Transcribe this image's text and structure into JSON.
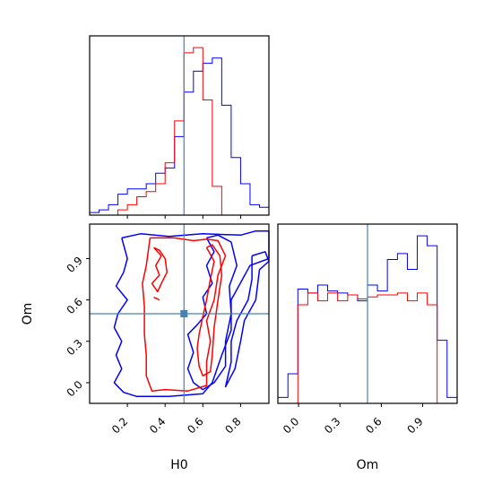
{
  "chart_data": {
    "type": "corner",
    "parameters": [
      "H0",
      "Om"
    ],
    "truth": {
      "H0": 0.5,
      "Om": 0.5
    },
    "colors": {
      "series_a": "#0000ff",
      "series_b": "#ff0000",
      "truth": "#4682b4",
      "frame": "#000000"
    },
    "panels": {
      "H0_marginal": {
        "type": "histogram",
        "xlim": [
          0.0,
          0.95
        ],
        "bin_edges": [
          0.0,
          0.05,
          0.1,
          0.15,
          0.2,
          0.25,
          0.3,
          0.35,
          0.4,
          0.45,
          0.5,
          0.55,
          0.6,
          0.65,
          0.7,
          0.75,
          0.8,
          0.85,
          0.9,
          0.95
        ],
        "series": [
          {
            "color": "blue",
            "counts": [
              1,
              2,
              4,
              8,
              10,
              10,
              12,
              16,
              18,
              30,
              47,
              55,
              58,
              60,
              42,
              22,
              12,
              4,
              3
            ]
          },
          {
            "color": "red",
            "counts": [
              0,
              0,
              0,
              2,
              4,
              7,
              9,
              12,
              20,
              36,
              62,
              64,
              44,
              11,
              0,
              0,
              0,
              0,
              0
            ]
          }
        ],
        "truth_line": 0.5
      },
      "Om_marginal": {
        "type": "histogram",
        "xlim": [
          -0.15,
          1.15
        ],
        "xticks": [
          "0.0",
          "0.3",
          "0.6",
          "0.9"
        ],
        "xlabel": "Om",
        "bin_edges": [
          -0.15,
          -0.077,
          -0.005,
          0.067,
          0.139,
          0.211,
          0.283,
          0.356,
          0.428,
          0.5,
          0.572,
          0.644,
          0.717,
          0.789,
          0.861,
          0.933,
          1.005,
          1.077,
          1.15
        ],
        "series": [
          {
            "color": "blue",
            "counts": [
              3,
              15,
              58,
              56,
              60,
              57,
              56,
              55,
              52,
              60,
              57,
              73,
              76,
              68,
              85,
              80,
              32,
              3
            ]
          },
          {
            "color": "red",
            "counts": [
              0,
              0,
              50,
              56,
              52,
              56,
              52,
              55,
              53,
              54,
              55,
              55,
              56,
              52,
              56,
              50,
              0,
              0
            ]
          }
        ],
        "truth_line": 0.5
      },
      "H0_Om_joint": {
        "type": "contour",
        "xlim": [
          0.0,
          0.95
        ],
        "ylim": [
          -0.15,
          1.15
        ],
        "xticks": [
          "0.2",
          "0.4",
          "0.6",
          "0.8"
        ],
        "yticks": [
          "0.0",
          "0.3",
          "0.6",
          "0.9"
        ],
        "xlabel": "H0",
        "ylabel": "Om",
        "truth_point": [
          0.5,
          0.5
        ],
        "contours": [
          {
            "color": "blue",
            "level": "outer",
            "points": [
              [
                0.17,
                1.05
              ],
              [
                0.27,
                1.08
              ],
              [
                0.42,
                1.06
              ],
              [
                0.6,
                1.08
              ],
              [
                0.8,
                1.07
              ],
              [
                0.88,
                1.1
              ],
              [
                0.95,
                1.1
              ],
              [
                0.95,
                0.9
              ],
              [
                0.85,
                0.85
              ],
              [
                0.75,
                0.6
              ],
              [
                0.75,
                0.38
              ],
              [
                0.7,
                0.2
              ],
              [
                0.65,
                0.0
              ],
              [
                0.6,
                -0.08
              ],
              [
                0.42,
                -0.1
              ],
              [
                0.25,
                -0.1
              ],
              [
                0.18,
                -0.07
              ],
              [
                0.13,
                0.0
              ],
              [
                0.17,
                0.1
              ],
              [
                0.14,
                0.2
              ],
              [
                0.17,
                0.3
              ],
              [
                0.13,
                0.4
              ],
              [
                0.15,
                0.5
              ],
              [
                0.2,
                0.6
              ],
              [
                0.14,
                0.7
              ],
              [
                0.18,
                0.8
              ],
              [
                0.2,
                0.9
              ],
              [
                0.17,
                1.05
              ]
            ]
          },
          {
            "color": "blue",
            "level": "outer-strip",
            "points": [
              [
                0.86,
                0.92
              ],
              [
                0.93,
                0.95
              ],
              [
                0.95,
                0.88
              ],
              [
                0.9,
                0.82
              ],
              [
                0.88,
                0.6
              ],
              [
                0.82,
                0.45
              ],
              [
                0.8,
                0.3
              ],
              [
                0.77,
                0.1
              ],
              [
                0.72,
                -0.03
              ],
              [
                0.75,
                0.15
              ],
              [
                0.75,
                0.3
              ],
              [
                0.78,
                0.45
              ],
              [
                0.84,
                0.6
              ],
              [
                0.86,
                0.75
              ],
              [
                0.86,
                0.92
              ]
            ]
          },
          {
            "color": "blue",
            "level": "inner",
            "points": [
              [
                0.62,
                1.05
              ],
              [
                0.66,
                0.95
              ],
              [
                0.62,
                0.85
              ],
              [
                0.65,
                0.72
              ],
              [
                0.6,
                0.62
              ],
              [
                0.62,
                0.5
              ],
              [
                0.57,
                0.42
              ],
              [
                0.52,
                0.35
              ],
              [
                0.55,
                0.22
              ],
              [
                0.52,
                0.1
              ],
              [
                0.55,
                0.0
              ],
              [
                0.6,
                -0.05
              ],
              [
                0.66,
                0.0
              ],
              [
                0.72,
                0.12
              ],
              [
                0.72,
                0.3
              ],
              [
                0.75,
                0.5
              ],
              [
                0.74,
                0.7
              ],
              [
                0.78,
                0.85
              ],
              [
                0.75,
                1.02
              ],
              [
                0.68,
                1.07
              ],
              [
                0.62,
                1.05
              ]
            ]
          },
          {
            "color": "red",
            "level": "outer",
            "points": [
              [
                0.32,
                1.05
              ],
              [
                0.45,
                1.05
              ],
              [
                0.55,
                1.03
              ],
              [
                0.62,
                1.04
              ],
              [
                0.68,
                1.03
              ],
              [
                0.72,
                0.92
              ],
              [
                0.68,
                0.78
              ],
              [
                0.66,
                0.6
              ],
              [
                0.62,
                0.45
              ],
              [
                0.64,
                0.3
              ],
              [
                0.62,
                0.15
              ],
              [
                0.62,
                -0.02
              ],
              [
                0.52,
                -0.06
              ],
              [
                0.4,
                -0.05
              ],
              [
                0.33,
                -0.06
              ],
              [
                0.3,
                0.05
              ],
              [
                0.3,
                0.2
              ],
              [
                0.29,
                0.35
              ],
              [
                0.29,
                0.55
              ],
              [
                0.28,
                0.72
              ],
              [
                0.3,
                0.85
              ],
              [
                0.32,
                1.05
              ]
            ]
          },
          {
            "color": "red",
            "level": "inner",
            "points": [
              [
                0.62,
                0.98
              ],
              [
                0.66,
                0.88
              ],
              [
                0.64,
                0.75
              ],
              [
                0.62,
                0.6
              ],
              [
                0.6,
                0.48
              ],
              [
                0.58,
                0.35
              ],
              [
                0.57,
                0.25
              ],
              [
                0.58,
                0.12
              ],
              [
                0.6,
                0.05
              ],
              [
                0.64,
                0.08
              ],
              [
                0.65,
                0.2
              ],
              [
                0.66,
                0.4
              ],
              [
                0.68,
                0.6
              ],
              [
                0.7,
                0.78
              ],
              [
                0.69,
                0.92
              ],
              [
                0.65,
                1.0
              ],
              [
                0.62,
                0.98
              ]
            ]
          },
          {
            "color": "red",
            "level": "inner-left",
            "points": [
              [
                0.34,
                0.98
              ],
              [
                0.38,
                0.92
              ],
              [
                0.35,
                0.85
              ],
              [
                0.37,
                0.78
              ],
              [
                0.33,
                0.72
              ],
              [
                0.36,
                0.66
              ],
              [
                0.38,
                0.72
              ],
              [
                0.41,
                0.8
              ],
              [
                0.4,
                0.9
              ],
              [
                0.37,
                0.96
              ],
              [
                0.34,
                0.98
              ]
            ]
          }
        ],
        "fragments": [
          {
            "color": "red",
            "points": [
              [
                0.34,
                0.62
              ],
              [
                0.37,
                0.6
              ]
            ]
          }
        ]
      }
    }
  }
}
